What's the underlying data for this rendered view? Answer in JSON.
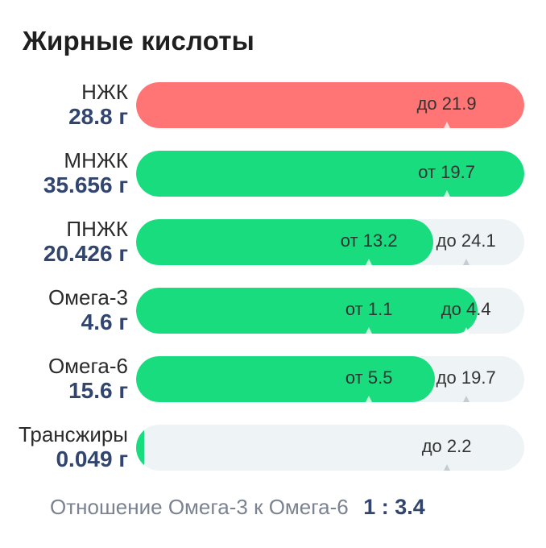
{
  "card": {
    "title": "Жирные кислоты"
  },
  "rows": [
    {
      "name": "НЖК",
      "amount": "28.8 г",
      "color": "#ff7474",
      "fill_fraction": 1.0,
      "markers": [
        {
          "label": "до 21.9",
          "pos": 0.8
        }
      ]
    },
    {
      "name": "МНЖК",
      "amount": "35.656 г",
      "color": "#19dc7e",
      "fill_fraction": 1.0,
      "markers": [
        {
          "label": "от 19.7",
          "pos": 0.8
        }
      ]
    },
    {
      "name": "ПНЖК",
      "amount": "20.426 г",
      "color": "#19dc7e",
      "fill_fraction": 0.765,
      "markers": [
        {
          "label": "от 13.2",
          "pos": 0.6
        },
        {
          "label": "до 24.1",
          "pos": 0.85
        }
      ]
    },
    {
      "name": "Омега-3",
      "amount": "4.6 г",
      "color": "#19dc7e",
      "fill_fraction": 0.88,
      "markers": [
        {
          "label": "от 1.1",
          "pos": 0.6
        },
        {
          "label": "до 4.4",
          "pos": 0.85
        }
      ]
    },
    {
      "name": "Омега-6",
      "amount": "15.6 г",
      "color": "#19dc7e",
      "fill_fraction": 0.77,
      "markers": [
        {
          "label": "от 5.5",
          "pos": 0.6
        },
        {
          "label": "до 19.7",
          "pos": 0.85
        }
      ]
    },
    {
      "name": "Трансжиры",
      "amount": "0.049 г",
      "color": "#19dc7e",
      "fill_fraction": 0.02,
      "markers": [
        {
          "label": "до 2.2",
          "pos": 0.8
        }
      ]
    }
  ],
  "ratio": {
    "text": "Отношение Омега-3 к Омега-6",
    "value": "1 : 3.4"
  }
}
